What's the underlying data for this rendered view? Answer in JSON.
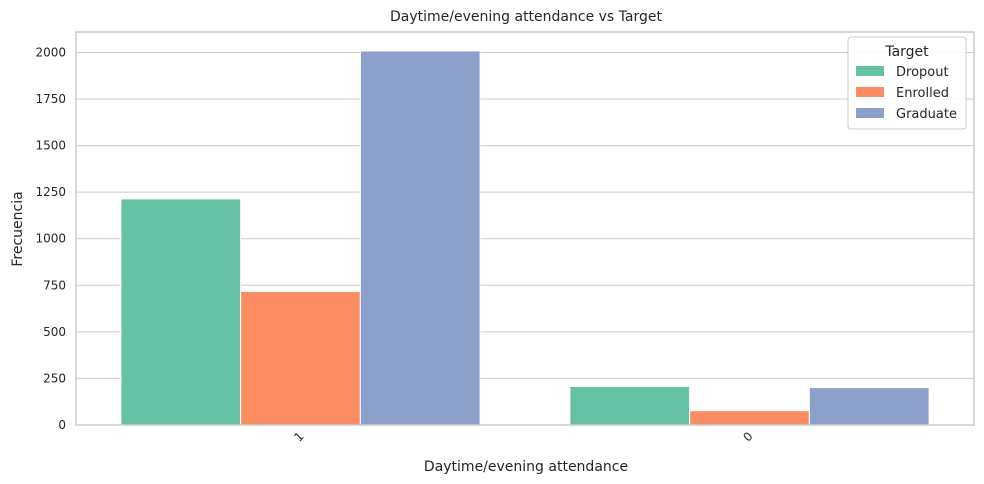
{
  "chart_data": {
    "type": "bar",
    "title": "Daytime/evening attendance vs Target",
    "xlabel": "Daytime/evening attendance",
    "ylabel": "Frecuencia",
    "categories": [
      "1",
      "0"
    ],
    "series": [
      {
        "name": "Dropout",
        "values": [
          1214,
          207
        ],
        "color": "#66c2a5"
      },
      {
        "name": "Enrolled",
        "values": [
          717,
          77
        ],
        "color": "#fc8d62"
      },
      {
        "name": "Graduate",
        "values": [
          2008,
          201
        ],
        "color": "#8da0cb"
      }
    ],
    "ylim": [
      0,
      2110
    ],
    "yticks": [
      0,
      250,
      500,
      750,
      1000,
      1250,
      1500,
      1750,
      2000
    ],
    "grid": "horizontal",
    "legend": {
      "title": "Target",
      "placement": "top-right"
    }
  }
}
